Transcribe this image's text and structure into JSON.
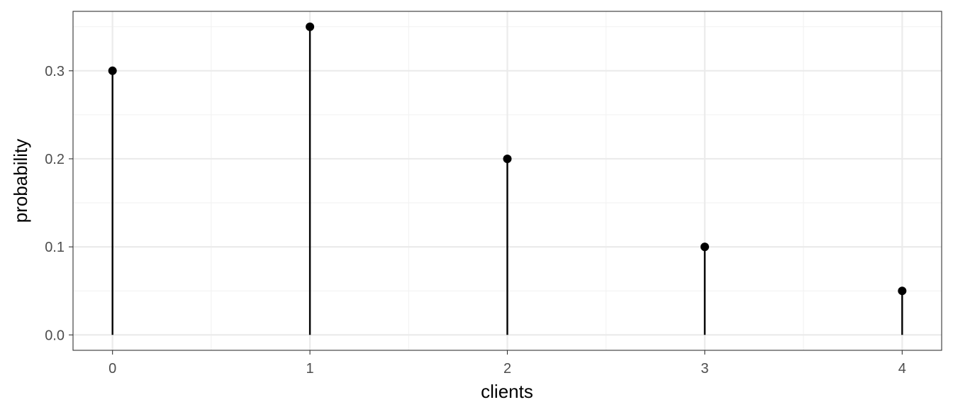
{
  "chart_data": {
    "type": "lollipop",
    "x": [
      0,
      1,
      2,
      3,
      4
    ],
    "values": [
      0.3,
      0.35,
      0.2,
      0.1,
      0.05
    ],
    "xlabel": "clients",
    "ylabel": "probability",
    "xlim": [
      -0.2,
      4.2
    ],
    "ylim": [
      -0.0175,
      0.3675
    ],
    "x_ticks": [
      0,
      1,
      2,
      3,
      4
    ],
    "x_tick_labels": [
      "0",
      "1",
      "2",
      "3",
      "4"
    ],
    "y_ticks": [
      0.0,
      0.1,
      0.2,
      0.3
    ],
    "y_tick_labels": [
      "0.0",
      "0.1",
      "0.2",
      "0.3"
    ],
    "x_minor_ticks": [
      0.5,
      1.5,
      2.5,
      3.5
    ],
    "y_minor_ticks": [
      0.05,
      0.15,
      0.25,
      0.35
    ],
    "grid": true,
    "colors": {
      "mark": "#000000",
      "grid_major": "#ebebeb",
      "grid_minor": "#f2f2f2",
      "axis_text": "#4d4d4d",
      "panel_border": "#333333"
    }
  }
}
